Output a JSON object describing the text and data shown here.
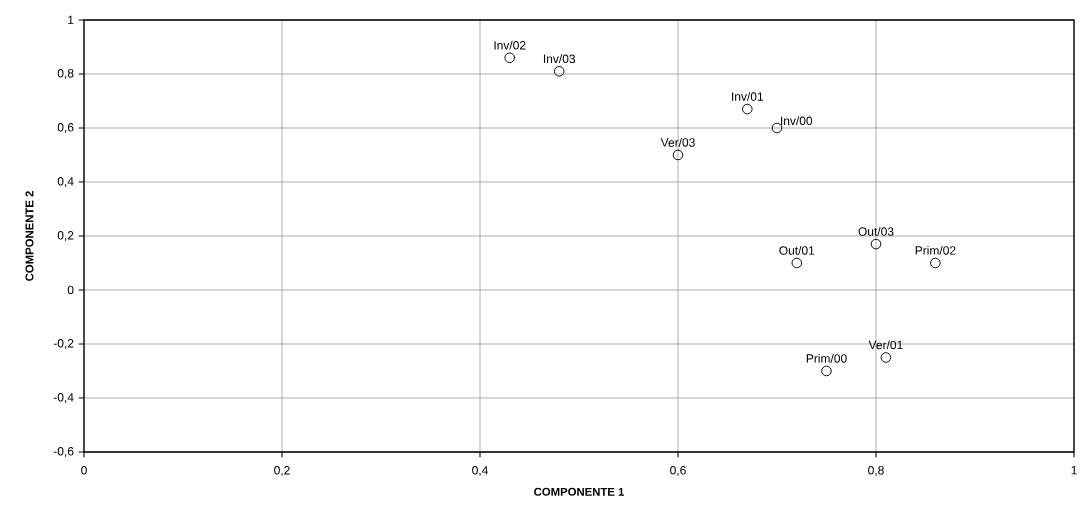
{
  "chart_data": {
    "type": "scatter",
    "xlabel": "COMPONENTE 1",
    "ylabel": "COMPONENTE 2",
    "x": [
      0.43,
      0.48,
      0.67,
      0.7,
      0.6,
      0.72,
      0.8,
      0.86,
      0.75,
      0.81
    ],
    "values": [
      0.86,
      0.81,
      0.67,
      0.6,
      0.5,
      0.1,
      0.17,
      0.1,
      -0.3,
      -0.25
    ],
    "color": "#000000",
    "marker": "circle",
    "grid": true,
    "xlim": [
      0,
      1
    ],
    "ylim": [
      -0.6,
      1
    ],
    "xticks": [
      {
        "value": 0,
        "label": "0"
      },
      {
        "value": 0.2,
        "label": "0,2"
      },
      {
        "value": 0.4,
        "label": "0,4"
      },
      {
        "value": 0.6,
        "label": "0,6"
      },
      {
        "value": 0.8,
        "label": "0,8"
      },
      {
        "value": 1,
        "label": "1"
      }
    ],
    "yticks": [
      {
        "value": -0.6,
        "label": "-0,6"
      },
      {
        "value": -0.4,
        "label": "-0,4"
      },
      {
        "value": -0.2,
        "label": "-0,2"
      },
      {
        "value": 0,
        "label": "0"
      },
      {
        "value": 0.2,
        "label": "0,2"
      },
      {
        "value": 0.4,
        "label": "0,4"
      },
      {
        "value": 0.6,
        "label": "0,6"
      },
      {
        "value": 0.8,
        "label": "0,8"
      },
      {
        "value": 1,
        "label": "1"
      }
    ],
    "annotations": [
      {
        "text": "Inv/02",
        "x": 0.43,
        "y": 0.86
      },
      {
        "text": "Inv/03",
        "x": 0.48,
        "y": 0.81
      },
      {
        "text": "Inv/01",
        "x": 0.67,
        "y": 0.67
      },
      {
        "text": "Inv/00",
        "x": 0.7,
        "y": 0.6
      },
      {
        "text": "Ver/03",
        "x": 0.6,
        "y": 0.5
      },
      {
        "text": "Out/01",
        "x": 0.72,
        "y": 0.1
      },
      {
        "text": "Out/03",
        "x": 0.8,
        "y": 0.17
      },
      {
        "text": "Prim/02",
        "x": 0.86,
        "y": 0.1
      },
      {
        "text": "Prim/00",
        "x": 0.75,
        "y": -0.3
      },
      {
        "text": "Ver/01",
        "x": 0.81,
        "y": -0.25
      }
    ]
  }
}
